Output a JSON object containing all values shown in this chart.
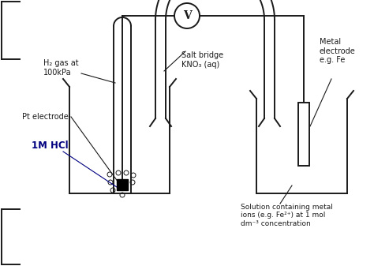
{
  "bg_color": "#ffffff",
  "line_color": "#1a1a1a",
  "text_color": "#1a1a1a",
  "bold_text_color": "#000080",
  "figsize": [
    4.74,
    3.37
  ],
  "dpi": 100,
  "labels": {
    "h2_gas": "H₂ gas at\n100kPa",
    "pt_electrode": "Pt electrode",
    "hcl": "1M HCl",
    "salt_bridge": "Salt bridge\nKNO₃ (aq)",
    "metal_electrode": "Metal\nelectrode\ne.g. Fe",
    "solution": "Solution containing metal\nions (e.g. Fe²⁺) at 1 mol\ndm⁻³ concentration",
    "voltmeter": "V"
  }
}
